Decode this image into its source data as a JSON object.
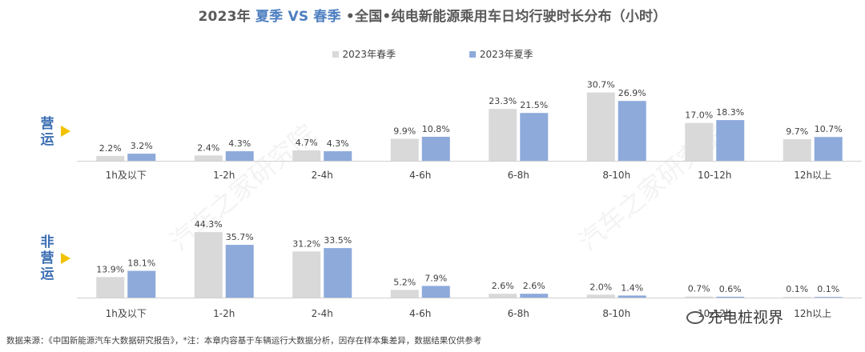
{
  "title": {
    "part1": "2023年 ",
    "accent1": "夏季 VS 春季",
    "part2": " •全国•纯电新能源乘用车日均行驶时长分布（小时）"
  },
  "legend": {
    "spring": "2023年春季",
    "summer": "2023年夏季"
  },
  "colors": {
    "spring": "#d9d9d9",
    "summer": "#8eaadb",
    "title_accent": "#4e7fc0",
    "panel_label": "#3c6fb3",
    "arrow": "#f2c200"
  },
  "chart_data": [
    {
      "type": "bar",
      "panel_label": "营运",
      "categories": [
        "1h及以下",
        "1-2h",
        "2-4h",
        "4-6h",
        "6-8h",
        "8-10h",
        "10-12h",
        "12h以上"
      ],
      "series": [
        {
          "name": "2023年春季",
          "values": [
            2.2,
            2.4,
            4.7,
            9.9,
            23.3,
            30.7,
            17.0,
            9.7
          ],
          "labels": [
            "2.2%",
            "2.4%",
            "4.7%",
            "9.9%",
            "23.3%",
            "30.7%",
            "17.0%",
            "9.7%"
          ]
        },
        {
          "name": "2023年夏季",
          "values": [
            3.2,
            4.3,
            4.3,
            10.8,
            21.5,
            26.9,
            18.3,
            10.7
          ],
          "labels": [
            "3.2%",
            "4.3%",
            "4.3%",
            "10.8%",
            "21.5%",
            "26.9%",
            "18.3%",
            "10.7%"
          ]
        }
      ],
      "unit": "%",
      "ylim": [
        0,
        32
      ]
    },
    {
      "type": "bar",
      "panel_label": "非营运",
      "categories": [
        "1h及以下",
        "1-2h",
        "2-4h",
        "4-6h",
        "6-8h",
        "8-10h",
        "10-12h",
        "12h以上"
      ],
      "series": [
        {
          "name": "2023年春季",
          "values": [
            13.9,
            44.3,
            31.2,
            5.2,
            2.6,
            2.0,
            0.7,
            0.1
          ],
          "labels": [
            "13.9%",
            "44.3%",
            "31.2%",
            "5.2%",
            "2.6%",
            "2.0%",
            "0.7%",
            "0.1%"
          ]
        },
        {
          "name": "2023年夏季",
          "values": [
            18.1,
            35.7,
            33.5,
            7.9,
            2.6,
            1.4,
            0.6,
            0.1
          ],
          "labels": [
            "18.1%",
            "35.7%",
            "33.5%",
            "7.9%",
            "2.6%",
            "1.4%",
            "0.6%",
            "0.1%"
          ]
        }
      ],
      "unit": "%",
      "ylim": [
        0,
        46
      ]
    }
  ],
  "panel1_label": [
    "营",
    "运"
  ],
  "panel2_label": [
    "非",
    "营",
    "运"
  ],
  "footer": "数据来源：《中国新能源汽车大数据研究报告》，*注：本章内容基于车辆运行大数据分析，因存在样本集差异，数据结果仅供参考",
  "brand": "充电桩视界",
  "watermark": "汽车之家研究院"
}
